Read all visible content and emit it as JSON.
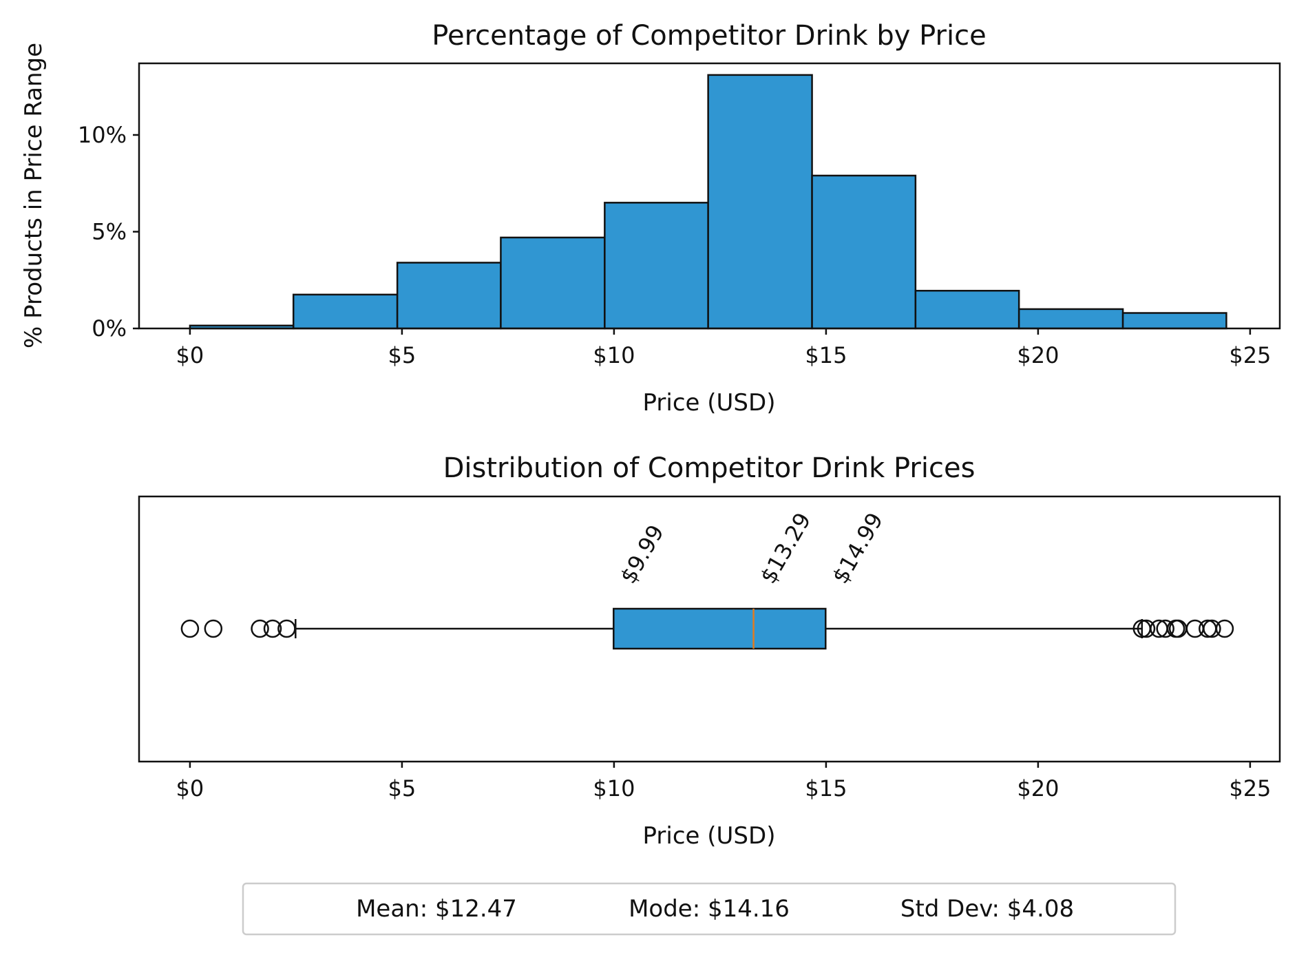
{
  "chart_data": [
    {
      "type": "bar",
      "title": "Percentage of Competitor Drink by Price",
      "xlabel": "Price (USD)",
      "ylabel": "% Products in Price Range",
      "xlim": [
        -1.2,
        25.7
      ],
      "ylim": [
        0,
        13.7
      ],
      "xticks": [
        0,
        5,
        10,
        15,
        20,
        25
      ],
      "xtick_labels": [
        "$0",
        "$5",
        "$10",
        "$15",
        "$20",
        "$25"
      ],
      "yticks": [
        0,
        5,
        10
      ],
      "ytick_labels": [
        "0%",
        "5%",
        "10%"
      ],
      "bins": [
        {
          "x0": 0.0,
          "x1": 2.44,
          "value": 0.15
        },
        {
          "x0": 2.44,
          "x1": 4.89,
          "value": 1.75
        },
        {
          "x0": 4.89,
          "x1": 7.33,
          "value": 3.4
        },
        {
          "x0": 7.33,
          "x1": 9.78,
          "value": 4.7
        },
        {
          "x0": 9.78,
          "x1": 12.22,
          "value": 6.5
        },
        {
          "x0": 12.22,
          "x1": 14.67,
          "value": 13.1
        },
        {
          "x0": 14.67,
          "x1": 17.11,
          "value": 7.9
        },
        {
          "x0": 17.11,
          "x1": 19.55,
          "value": 1.95
        },
        {
          "x0": 19.55,
          "x1": 22.0,
          "value": 1.0
        },
        {
          "x0": 22.0,
          "x1": 24.44,
          "value": 0.8
        }
      ],
      "bar_color": "#3096d2",
      "edge_color": "#111111",
      "grid": false
    },
    {
      "type": "boxplot",
      "title": "Distribution of Competitor Drink Prices",
      "xlabel": "Price (USD)",
      "xlim": [
        -1.2,
        25.7
      ],
      "xticks": [
        0,
        5,
        10,
        15,
        20,
        25
      ],
      "xtick_labels": [
        "$0",
        "$5",
        "$10",
        "$15",
        "$20",
        "$25"
      ],
      "whisker_low": 2.49,
      "q1": 9.99,
      "median": 13.29,
      "q3": 14.99,
      "whisker_high": 22.45,
      "outliers": [
        0.0,
        0.55,
        1.65,
        1.95,
        2.28,
        22.45,
        22.55,
        22.85,
        23.0,
        23.25,
        23.3,
        23.7,
        24.0,
        24.1,
        24.4
      ],
      "annotations": [
        "$9.99",
        "$13.29",
        "$14.99"
      ],
      "box_color": "#3096d2",
      "median_color": "#e07b20",
      "grid": false
    }
  ],
  "stats": {
    "mean": "Mean: $12.47",
    "mode": "Mode: $14.16",
    "std": "Std Dev: $4.08"
  }
}
